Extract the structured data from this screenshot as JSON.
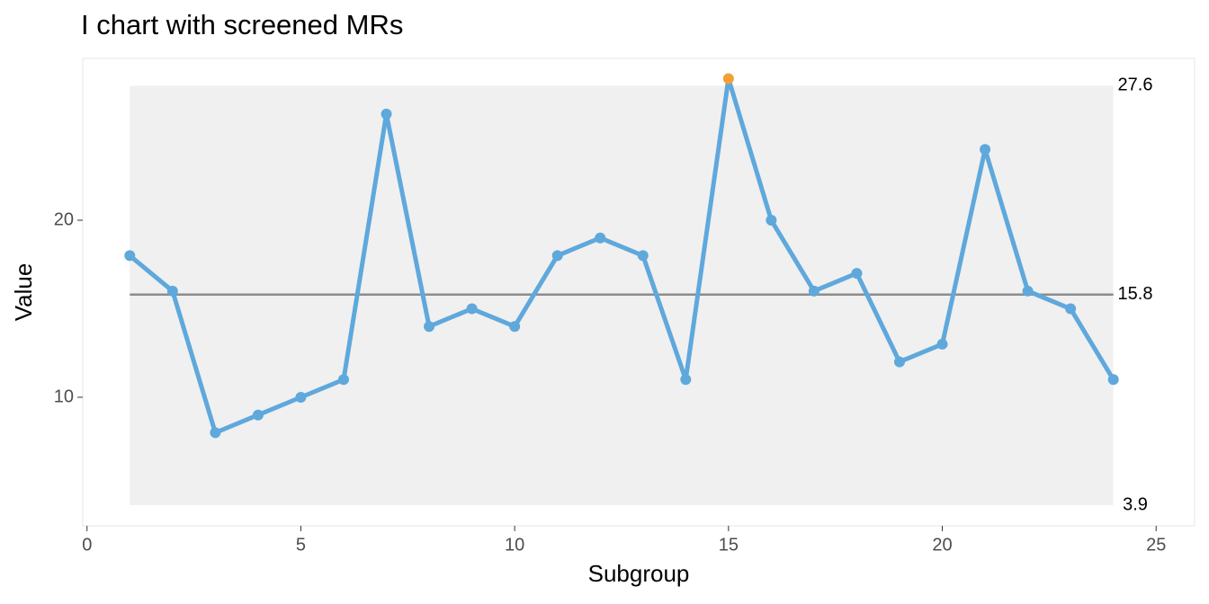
{
  "chart_data": {
    "type": "line",
    "title": "I chart with screened MRs",
    "x_label": "Subgroup",
    "y_label": "Value",
    "x": [
      1,
      2,
      3,
      4,
      5,
      6,
      7,
      8,
      9,
      10,
      11,
      12,
      13,
      14,
      15,
      16,
      17,
      18,
      19,
      20,
      21,
      22,
      23,
      24
    ],
    "values": [
      18,
      16,
      8,
      9,
      10,
      11,
      26,
      14,
      15,
      14,
      18,
      19,
      18,
      11,
      28,
      20,
      16,
      17,
      12,
      13,
      24,
      16,
      15,
      11
    ],
    "color": "#5fa8dc",
    "signal_color": "#f5a033",
    "band_color": "#f0f0f0",
    "center_color": "#8c8c8c",
    "limits": {
      "ucl": 27.6,
      "cl": 15.8,
      "lcl": 3.9
    },
    "xlim": [
      -0.1,
      25.9
    ],
    "ylim": [
      2.74,
      29.14
    ],
    "xticks": [
      0,
      5,
      10,
      15,
      20,
      25
    ],
    "yticks": [
      10,
      20
    ]
  }
}
